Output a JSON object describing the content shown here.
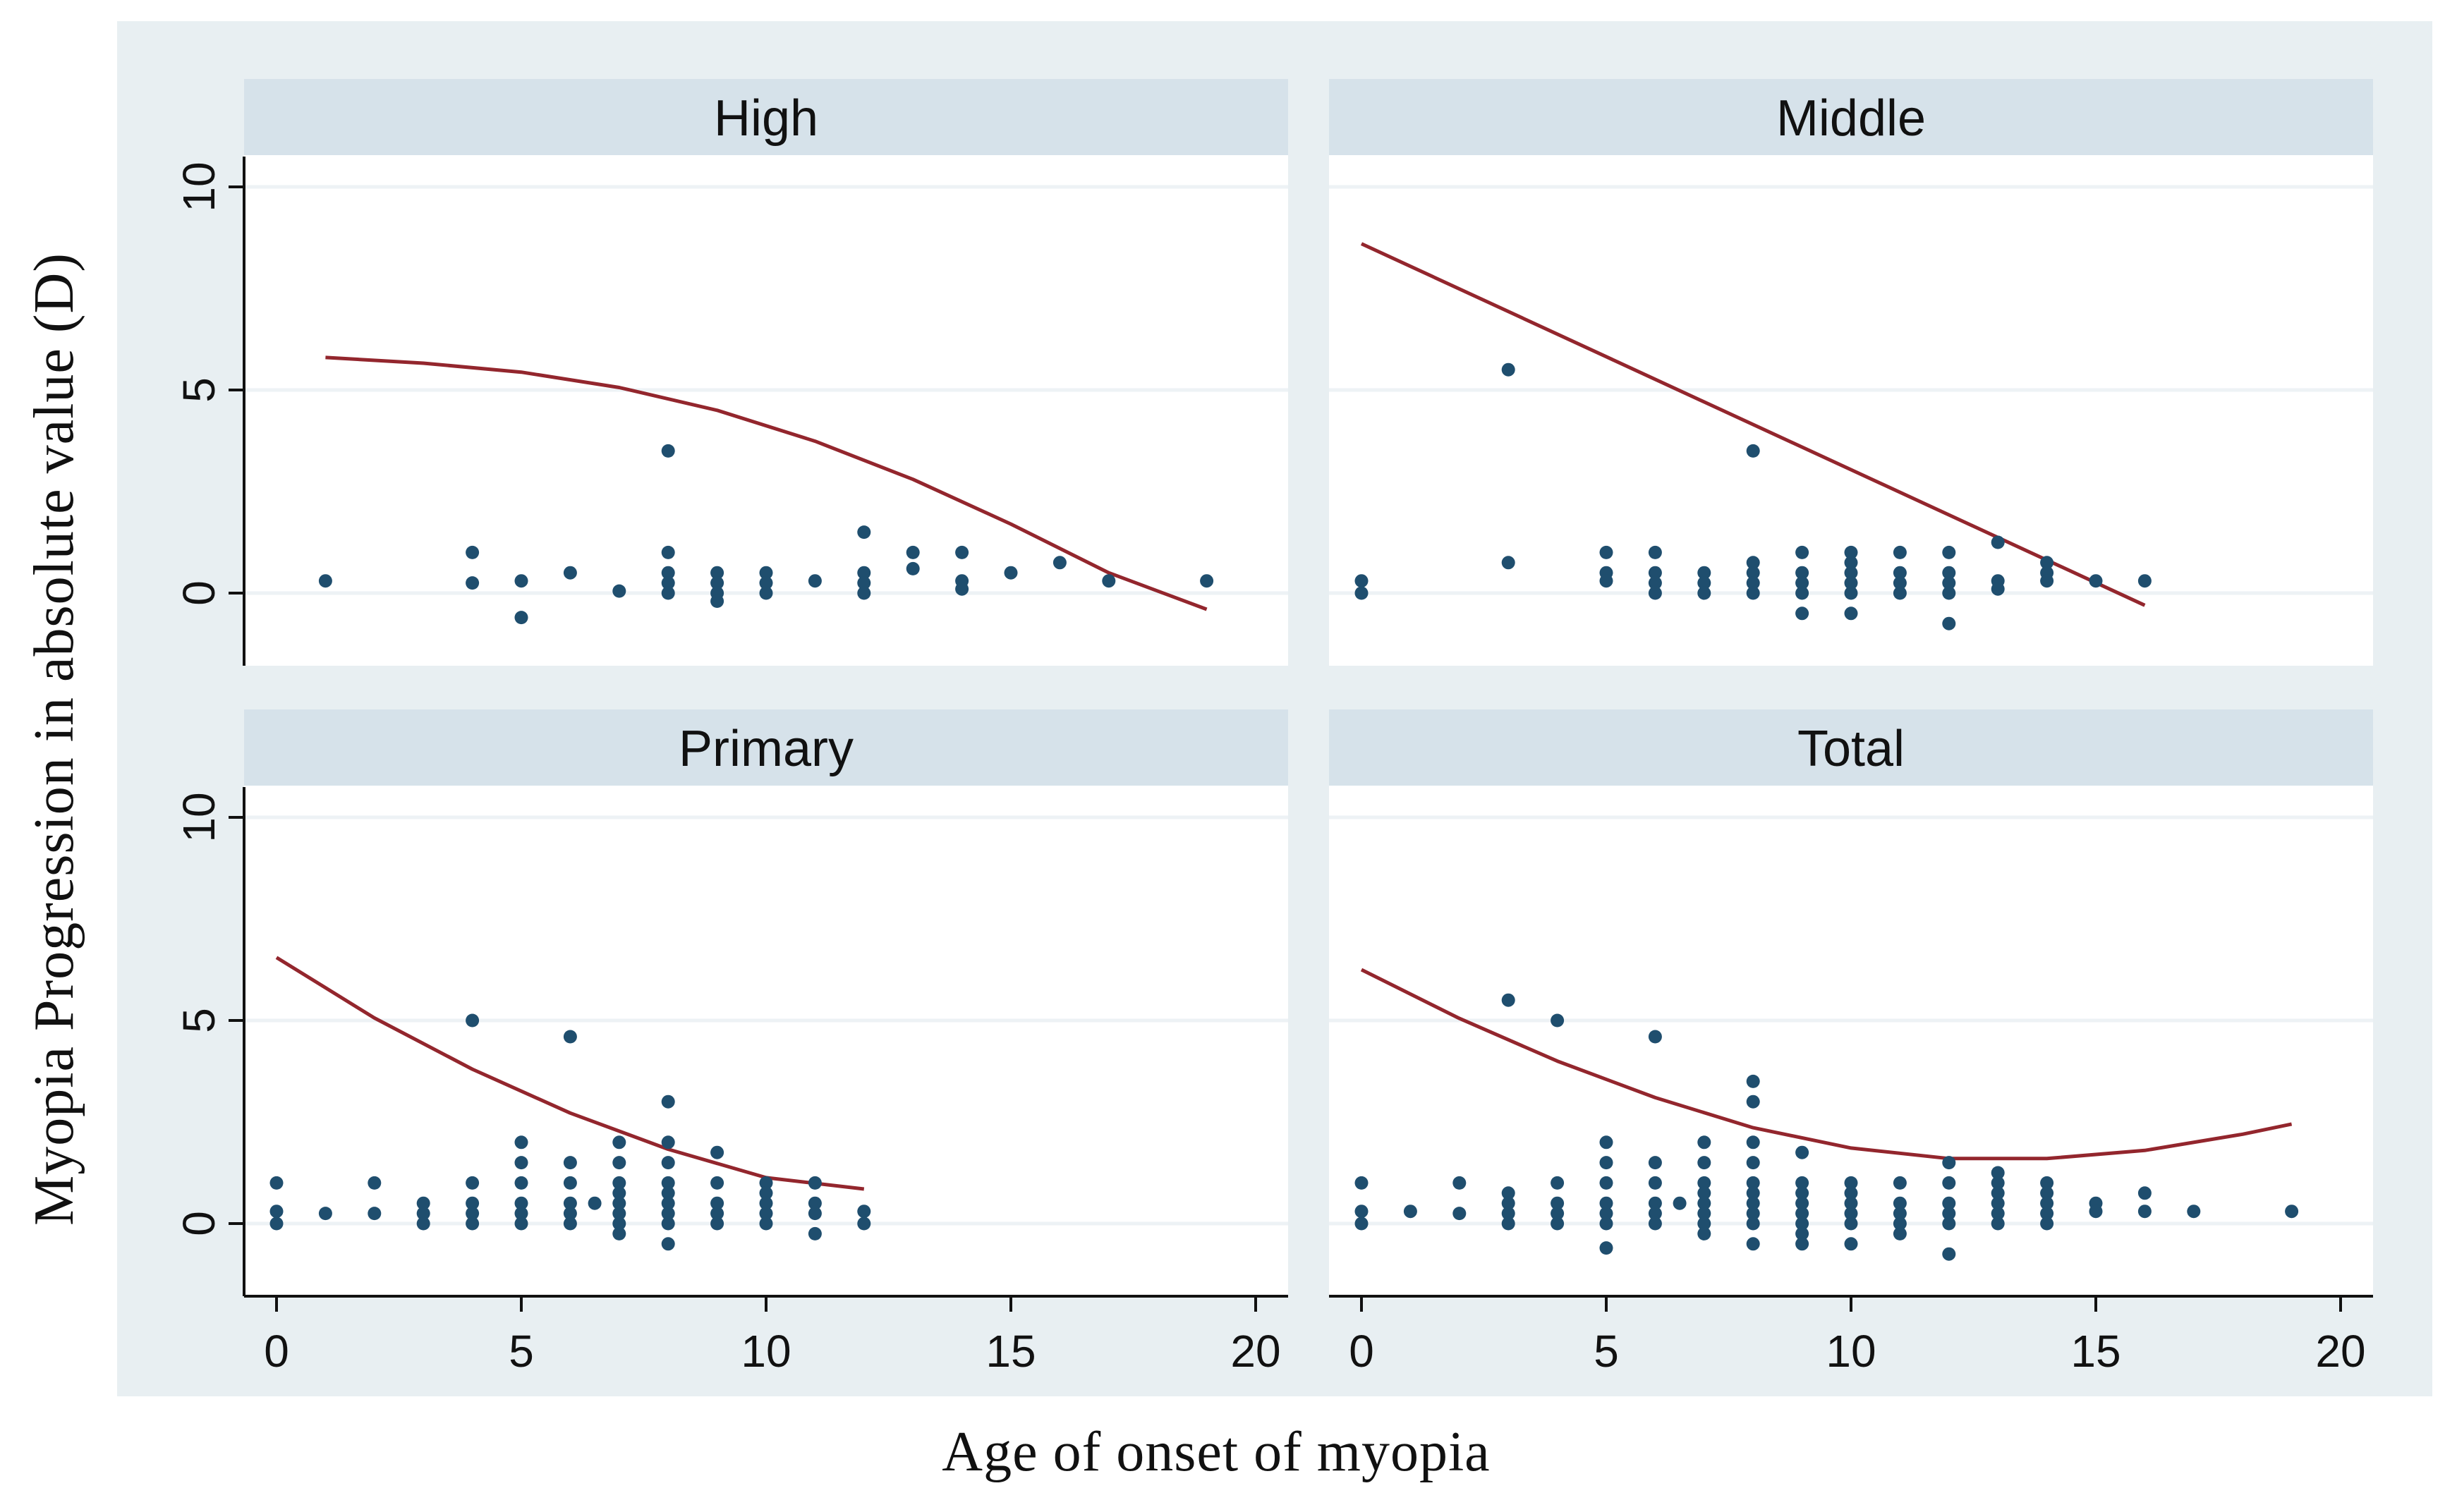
{
  "chart_data": {
    "type": "scatter",
    "xlabel": "Age of onset of myopia",
    "ylabel": "Myopia Progression in absolute value (D)",
    "xlim": [
      -1,
      21.5
    ],
    "ylim": [
      -1.8,
      10.7
    ],
    "x_ticks": [
      0,
      5,
      10,
      15,
      20
    ],
    "y_ticks": [
      0,
      5,
      10
    ],
    "grid": true,
    "colors": {
      "outer_background": "#e8eff2",
      "plot_background": "#ffffff",
      "strip_background": "#d6e2ea",
      "gridline": "#edf2f5",
      "marker": "#1f4e6e",
      "fit_line": "#93262d",
      "axis": "#111111"
    },
    "panels": [
      {
        "title": "High",
        "points": [
          [
            1,
            0.3
          ],
          [
            4,
            1.0
          ],
          [
            4,
            0.25
          ],
          [
            5,
            0.3
          ],
          [
            5,
            -0.6
          ],
          [
            6,
            0.5
          ],
          [
            7,
            0.05
          ],
          [
            8,
            3.5
          ],
          [
            8,
            1.0
          ],
          [
            8,
            0.5
          ],
          [
            8,
            0.25
          ],
          [
            8,
            0.0
          ],
          [
            9,
            0.5
          ],
          [
            9,
            0.25
          ],
          [
            9,
            0.0
          ],
          [
            9,
            -0.2
          ],
          [
            10,
            0.5
          ],
          [
            10,
            0.25
          ],
          [
            10,
            0.0
          ],
          [
            11,
            0.3
          ],
          [
            12,
            1.5
          ],
          [
            12,
            0.5
          ],
          [
            12,
            0.25
          ],
          [
            12,
            0.0
          ],
          [
            13,
            1.0
          ],
          [
            13,
            0.6
          ],
          [
            14,
            1.0
          ],
          [
            14,
            0.3
          ],
          [
            14,
            0.1
          ],
          [
            15,
            0.5
          ],
          [
            16,
            0.75
          ],
          [
            17,
            0.3
          ],
          [
            19,
            0.3
          ]
        ],
        "fit": [
          [
            1,
            5.8
          ],
          [
            3,
            5.66
          ],
          [
            5,
            5.44
          ],
          [
            7,
            5.06
          ],
          [
            9,
            4.5
          ],
          [
            11,
            3.74
          ],
          [
            13,
            2.8
          ],
          [
            15,
            1.7
          ],
          [
            17,
            0.5
          ],
          [
            19,
            -0.4
          ]
        ]
      },
      {
        "title": "Middle",
        "points": [
          [
            0,
            0.3
          ],
          [
            0,
            0.0
          ],
          [
            3,
            5.5
          ],
          [
            3,
            0.75
          ],
          [
            5,
            1.0
          ],
          [
            5,
            0.5
          ],
          [
            5,
            0.3
          ],
          [
            6,
            1.0
          ],
          [
            6,
            0.5
          ],
          [
            6,
            0.25
          ],
          [
            6,
            0.0
          ],
          [
            7,
            0.5
          ],
          [
            7,
            0.25
          ],
          [
            7,
            0.0
          ],
          [
            8,
            3.5
          ],
          [
            8,
            0.75
          ],
          [
            8,
            0.5
          ],
          [
            8,
            0.25
          ],
          [
            8,
            0.0
          ],
          [
            9,
            1.0
          ],
          [
            9,
            0.5
          ],
          [
            9,
            0.25
          ],
          [
            9,
            0.0
          ],
          [
            9,
            -0.5
          ],
          [
            10,
            1.0
          ],
          [
            10,
            0.75
          ],
          [
            10,
            0.5
          ],
          [
            10,
            0.25
          ],
          [
            10,
            0.0
          ],
          [
            10,
            -0.5
          ],
          [
            11,
            1.0
          ],
          [
            11,
            0.5
          ],
          [
            11,
            0.25
          ],
          [
            11,
            0.0
          ],
          [
            12,
            1.0
          ],
          [
            12,
            0.5
          ],
          [
            12,
            0.25
          ],
          [
            12,
            0.0
          ],
          [
            12,
            -0.75
          ],
          [
            13,
            1.25
          ],
          [
            13,
            0.3
          ],
          [
            13,
            0.1
          ],
          [
            14,
            0.75
          ],
          [
            14,
            0.5
          ],
          [
            14,
            0.3
          ],
          [
            15,
            0.3
          ],
          [
            16,
            0.3
          ]
        ],
        "fit": [
          [
            0,
            8.6
          ],
          [
            16,
            -0.3
          ]
        ]
      },
      {
        "title": "Primary",
        "points": [
          [
            0,
            1.0
          ],
          [
            0,
            0.3
          ],
          [
            0,
            0.0
          ],
          [
            1,
            0.25
          ],
          [
            2,
            1.0
          ],
          [
            2,
            0.25
          ],
          [
            3,
            0.5
          ],
          [
            3,
            0.25
          ],
          [
            3,
            0.0
          ],
          [
            4,
            5.0
          ],
          [
            4,
            1.0
          ],
          [
            4,
            0.5
          ],
          [
            4,
            0.25
          ],
          [
            4,
            0.0
          ],
          [
            5,
            2.0
          ],
          [
            5,
            1.5
          ],
          [
            5,
            1.0
          ],
          [
            5,
            0.5
          ],
          [
            5,
            0.25
          ],
          [
            5,
            0.0
          ],
          [
            6,
            4.6
          ],
          [
            6,
            1.5
          ],
          [
            6,
            1.0
          ],
          [
            6,
            0.5
          ],
          [
            6,
            0.25
          ],
          [
            6,
            0.0
          ],
          [
            6.5,
            0.5
          ],
          [
            7,
            2.0
          ],
          [
            7,
            1.5
          ],
          [
            7,
            1.0
          ],
          [
            7,
            0.75
          ],
          [
            7,
            0.5
          ],
          [
            7,
            0.25
          ],
          [
            7,
            0.0
          ],
          [
            7,
            -0.25
          ],
          [
            8,
            3.0
          ],
          [
            8,
            2.0
          ],
          [
            8,
            1.5
          ],
          [
            8,
            1.0
          ],
          [
            8,
            0.75
          ],
          [
            8,
            0.5
          ],
          [
            8,
            0.25
          ],
          [
            8,
            0.0
          ],
          [
            8,
            -0.5
          ],
          [
            9,
            1.75
          ],
          [
            9,
            1.0
          ],
          [
            9,
            0.5
          ],
          [
            9,
            0.25
          ],
          [
            9,
            0.0
          ],
          [
            10,
            1.0
          ],
          [
            10,
            0.75
          ],
          [
            10,
            0.5
          ],
          [
            10,
            0.25
          ],
          [
            10,
            0.0
          ],
          [
            11,
            1.0
          ],
          [
            11,
            0.5
          ],
          [
            11,
            0.25
          ],
          [
            11,
            -0.25
          ],
          [
            12,
            0.3
          ],
          [
            12,
            0.0
          ]
        ],
        "fit": [
          [
            0,
            6.55
          ],
          [
            2,
            5.06
          ],
          [
            4,
            3.8
          ],
          [
            6,
            2.72
          ],
          [
            8,
            1.83
          ],
          [
            10,
            1.13
          ],
          [
            12,
            0.85
          ]
        ]
      },
      {
        "title": "Total",
        "points": [
          [
            0,
            1.0
          ],
          [
            0,
            0.3
          ],
          [
            0,
            0.0
          ],
          [
            1,
            0.3
          ],
          [
            2,
            1.0
          ],
          [
            2,
            0.25
          ],
          [
            3,
            5.5
          ],
          [
            3,
            0.75
          ],
          [
            3,
            0.5
          ],
          [
            3,
            0.25
          ],
          [
            3,
            0.0
          ],
          [
            4,
            5.0
          ],
          [
            4,
            1.0
          ],
          [
            4,
            0.5
          ],
          [
            4,
            0.25
          ],
          [
            4,
            0.0
          ],
          [
            5,
            2.0
          ],
          [
            5,
            1.5
          ],
          [
            5,
            1.0
          ],
          [
            5,
            0.5
          ],
          [
            5,
            0.25
          ],
          [
            5,
            0.0
          ],
          [
            5,
            -0.6
          ],
          [
            6,
            4.6
          ],
          [
            6,
            1.5
          ],
          [
            6,
            1.0
          ],
          [
            6,
            0.5
          ],
          [
            6,
            0.25
          ],
          [
            6,
            0.0
          ],
          [
            6.5,
            0.5
          ],
          [
            7,
            2.0
          ],
          [
            7,
            1.5
          ],
          [
            7,
            1.0
          ],
          [
            7,
            0.75
          ],
          [
            7,
            0.5
          ],
          [
            7,
            0.25
          ],
          [
            7,
            0.0
          ],
          [
            7,
            -0.25
          ],
          [
            8,
            3.5
          ],
          [
            8,
            3.0
          ],
          [
            8,
            2.0
          ],
          [
            8,
            1.5
          ],
          [
            8,
            1.0
          ],
          [
            8,
            0.75
          ],
          [
            8,
            0.5
          ],
          [
            8,
            0.25
          ],
          [
            8,
            0.0
          ],
          [
            8,
            -0.5
          ],
          [
            9,
            1.75
          ],
          [
            9,
            1.0
          ],
          [
            9,
            0.75
          ],
          [
            9,
            0.5
          ],
          [
            9,
            0.25
          ],
          [
            9,
            0.0
          ],
          [
            9,
            -0.25
          ],
          [
            9,
            -0.5
          ],
          [
            10,
            1.0
          ],
          [
            10,
            0.75
          ],
          [
            10,
            0.5
          ],
          [
            10,
            0.25
          ],
          [
            10,
            0.0
          ],
          [
            10,
            -0.5
          ],
          [
            11,
            1.0
          ],
          [
            11,
            0.5
          ],
          [
            11,
            0.25
          ],
          [
            11,
            0.0
          ],
          [
            11,
            -0.25
          ],
          [
            12,
            1.5
          ],
          [
            12,
            1.0
          ],
          [
            12,
            0.5
          ],
          [
            12,
            0.25
          ],
          [
            12,
            0.0
          ],
          [
            12,
            -0.75
          ],
          [
            13,
            1.25
          ],
          [
            13,
            1.0
          ],
          [
            13,
            0.75
          ],
          [
            13,
            0.5
          ],
          [
            13,
            0.25
          ],
          [
            13,
            0.0
          ],
          [
            14,
            1.0
          ],
          [
            14,
            0.75
          ],
          [
            14,
            0.5
          ],
          [
            14,
            0.25
          ],
          [
            14,
            0.0
          ],
          [
            15,
            0.5
          ],
          [
            15,
            0.3
          ],
          [
            16,
            0.75
          ],
          [
            16,
            0.3
          ],
          [
            17,
            0.3
          ],
          [
            19,
            0.3
          ]
        ],
        "fit": [
          [
            0,
            6.25
          ],
          [
            2,
            5.05
          ],
          [
            4,
            4.0
          ],
          [
            6,
            3.1
          ],
          [
            8,
            2.36
          ],
          [
            10,
            1.86
          ],
          [
            12,
            1.6
          ],
          [
            14,
            1.6
          ],
          [
            16,
            1.8
          ],
          [
            18,
            2.2
          ],
          [
            19,
            2.45
          ]
        ]
      }
    ]
  }
}
